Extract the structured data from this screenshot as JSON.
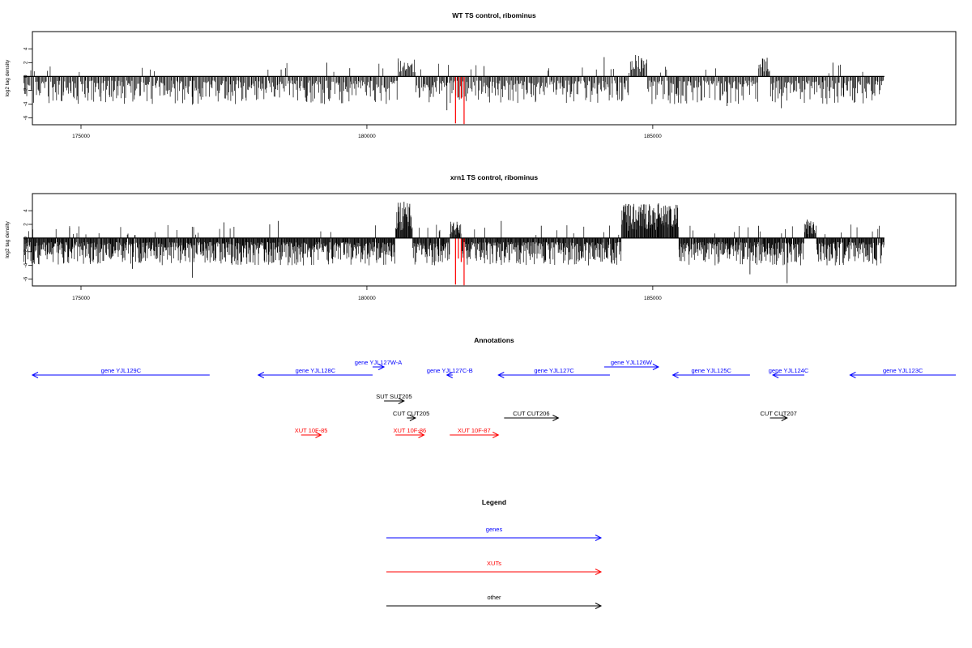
{
  "colors": {
    "axis": "#000000",
    "signal": "#000000",
    "highlight": "#ff0000",
    "genes": "#0000ff",
    "xuts": "#ff0000",
    "other": "#000000"
  },
  "chart_data": [
    {
      "type": "bar",
      "title": "WT TS control, ribominus",
      "xlabel": "",
      "ylabel": "log2 tag density",
      "xlim": [
        174150,
        190300
      ],
      "ylim": [
        -7,
        6.5
      ],
      "x_ticks": [
        175000,
        180000,
        185000
      ],
      "x_tick_labels": [
        "175000",
        "180000",
        "185000"
      ],
      "y_ticks": [
        4,
        2,
        0,
        -2,
        -4,
        -6
      ],
      "y_tick_labels": [
        "4",
        "2",
        "0",
        "-2",
        "-4",
        "-6"
      ],
      "baseline": 0,
      "grid": false,
      "signal_range": [
        174000,
        189050
      ],
      "signal_rate_per_kb": 62,
      "signal_seed": 11,
      "positive_regions": [
        {
          "x": [
            180550,
            180850
          ],
          "y": [
            0.6,
            2.5
          ]
        },
        {
          "x": [
            184600,
            184900
          ],
          "y": [
            0.5,
            3.1
          ]
        },
        {
          "x": [
            186850,
            187050
          ],
          "y": [
            0.5,
            2.6
          ]
        }
      ],
      "red_bars": [
        {
          "x": 181550,
          "y": -6.8
        },
        {
          "x": 181600,
          "y": -3.0
        },
        {
          "x": 181650,
          "y": -3.2
        },
        {
          "x": 181700,
          "y": -6.9
        }
      ],
      "key_points": [
        {
          "x": 179300,
          "y": 2.0
        },
        {
          "x": 179700,
          "y": 1.2
        },
        {
          "x": 180550,
          "y": 2.6
        },
        {
          "x": 181100,
          "y": -2.0
        },
        {
          "x": 181400,
          "y": -4.9
        },
        {
          "x": 182050,
          "y": 1.5
        },
        {
          "x": 184150,
          "y": 2.8
        },
        {
          "x": 184700,
          "y": 3.1
        },
        {
          "x": 184800,
          "y": 2.6
        },
        {
          "x": 187000,
          "y": 2.7
        },
        {
          "x": 187250,
          "y": -4.6
        },
        {
          "x": 188150,
          "y": 2.0
        },
        {
          "x": 188250,
          "y": 1.6
        },
        {
          "x": 175350,
          "y": -3.6
        },
        {
          "x": 176950,
          "y": -4.1
        },
        {
          "x": 178500,
          "y": 1.0
        },
        {
          "x": 178950,
          "y": -3.7
        },
        {
          "x": 185450,
          "y": -3.8
        },
        {
          "x": 186300,
          "y": -4.3
        }
      ]
    },
    {
      "type": "bar",
      "title": "xrn1 TS control, ribominus",
      "xlabel": "",
      "ylabel": "log2 tag density",
      "xlim": [
        174150,
        190300
      ],
      "ylim": [
        -7,
        6.5
      ],
      "x_ticks": [
        175000,
        180000,
        185000
      ],
      "x_tick_labels": [
        "175000",
        "180000",
        "185000"
      ],
      "y_ticks": [
        4,
        2,
        0,
        -2,
        -4,
        -6
      ],
      "y_tick_labels": [
        "4",
        "2",
        "0",
        "-2",
        "-4",
        "-6"
      ],
      "baseline": 0,
      "grid": false,
      "signal_range": [
        174000,
        189050
      ],
      "signal_rate_per_kb": 110,
      "signal_seed": 29,
      "positive_regions": [
        {
          "x": [
            180500,
            180800
          ],
          "y": [
            1.0,
            5.3
          ]
        },
        {
          "x": [
            181450,
            181650
          ],
          "y": [
            0.5,
            2.5
          ]
        },
        {
          "x": [
            184450,
            185450
          ],
          "y": [
            1.0,
            5.0
          ]
        },
        {
          "x": [
            187650,
            187850
          ],
          "y": [
            0.5,
            2.5
          ]
        }
      ],
      "red_bars": [
        {
          "x": 181550,
          "y": -6.8
        },
        {
          "x": 181600,
          "y": -3.0
        },
        {
          "x": 181650,
          "y": -3.5
        },
        {
          "x": 181700,
          "y": -6.9
        }
      ],
      "key_points": [
        {
          "x": 174800,
          "y": 1.5
        },
        {
          "x": 177500,
          "y": 2.3
        },
        {
          "x": 178300,
          "y": 2.0
        },
        {
          "x": 178450,
          "y": 2.5
        },
        {
          "x": 180650,
          "y": 5.3
        },
        {
          "x": 180750,
          "y": 5.0
        },
        {
          "x": 182350,
          "y": 2.5
        },
        {
          "x": 183050,
          "y": 1.8
        },
        {
          "x": 185100,
          "y": 5.1
        },
        {
          "x": 186850,
          "y": 1.8
        },
        {
          "x": 187700,
          "y": 2.7
        },
        {
          "x": 187350,
          "y": -6.6
        },
        {
          "x": 176950,
          "y": -5.8
        },
        {
          "x": 186700,
          "y": -5.3
        },
        {
          "x": 181250,
          "y": -3.5
        },
        {
          "x": 175900,
          "y": -4.5
        }
      ]
    }
  ],
  "annotations": {
    "title": "Annotations",
    "features": [
      {
        "label": "gene YJL129C",
        "start": 177250,
        "end": 174150,
        "type": "genes"
      },
      {
        "label": "gene YJL128C",
        "start": 180100,
        "end": 178100,
        "type": "genes"
      },
      {
        "label": "gene YJL127W-A",
        "start": 180100,
        "end": 180300,
        "type": "genes"
      },
      {
        "label": "gene YJL127C-B",
        "start": 181500,
        "end": 181400,
        "type": "genes"
      },
      {
        "label": "gene YJL127C",
        "start": 184250,
        "end": 182300,
        "type": "genes"
      },
      {
        "label": "gene YJL126W",
        "start": 184150,
        "end": 185100,
        "type": "genes"
      },
      {
        "label": "gene YJL125C",
        "start": 186700,
        "end": 185350,
        "type": "genes"
      },
      {
        "label": "gene YJL124C",
        "start": 187650,
        "end": 187100,
        "type": "genes"
      },
      {
        "label": "gene YJL123C",
        "start": 190300,
        "end": 188450,
        "type": "genes"
      },
      {
        "label": "SUT SUT205",
        "start": 180300,
        "end": 180650,
        "type": "other"
      },
      {
        "label": "CUT CUT205",
        "start": 180700,
        "end": 180850,
        "type": "other"
      },
      {
        "label": "CUT CUT206",
        "start": 182400,
        "end": 183350,
        "type": "other"
      },
      {
        "label": "CUT CUT207",
        "start": 187050,
        "end": 187350,
        "type": "other"
      },
      {
        "label": "XUT 10F-85",
        "start": 178850,
        "end": 179200,
        "type": "xuts"
      },
      {
        "label": "XUT 10F-86",
        "start": 180500,
        "end": 181000,
        "type": "xuts"
      },
      {
        "label": "XUT 10F-87",
        "start": 181450,
        "end": 182300,
        "type": "xuts"
      }
    ]
  },
  "legend": {
    "title": "Legend",
    "items": [
      {
        "label": "genes",
        "type": "genes"
      },
      {
        "label": "XUTs",
        "type": "xuts"
      },
      {
        "label": "other",
        "type": "other"
      }
    ]
  }
}
